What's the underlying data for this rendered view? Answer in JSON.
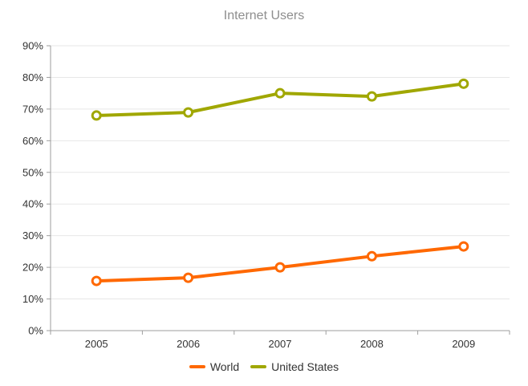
{
  "title": "Internet Users",
  "chart_data": {
    "type": "line",
    "title": "Internet Users",
    "categories": [
      "2005",
      "2006",
      "2007",
      "2008",
      "2009"
    ],
    "series": [
      {
        "name": "World",
        "color": "#ff6800",
        "values": [
          15.7,
          16.7,
          20,
          23.5,
          26.6
        ]
      },
      {
        "name": "United States",
        "color": "#a0a700",
        "values": [
          67.96,
          68.93,
          75,
          74,
          78
        ]
      }
    ],
    "xlabel": "",
    "ylabel": "",
    "ylim": [
      0,
      90
    ],
    "y_tick_step": 10,
    "y_tick_labels": [
      "0%",
      "10%",
      "20%",
      "30%",
      "40%",
      "50%",
      "60%",
      "70%",
      "80%",
      "90%"
    ],
    "x_tick_labels": [
      "2005",
      "2006",
      "2007",
      "2008",
      "2009"
    ],
    "grid": "horizontal",
    "legend_position": "bottom",
    "marker_style": "open-circle"
  },
  "colors": {
    "series_world": "#ff6800",
    "series_united_states": "#a0a700",
    "title": "#8e8e8e",
    "axis_label": "#333333",
    "legend_label": "#333333",
    "gridline": "#e7e7e7",
    "axis_line": "#9e9e9e",
    "marker_fill": "#ffffff",
    "background": "#ffffff"
  },
  "legend": {
    "items": [
      {
        "label": "World",
        "color": "#ff6800"
      },
      {
        "label": "United States",
        "color": "#a0a700"
      }
    ]
  }
}
